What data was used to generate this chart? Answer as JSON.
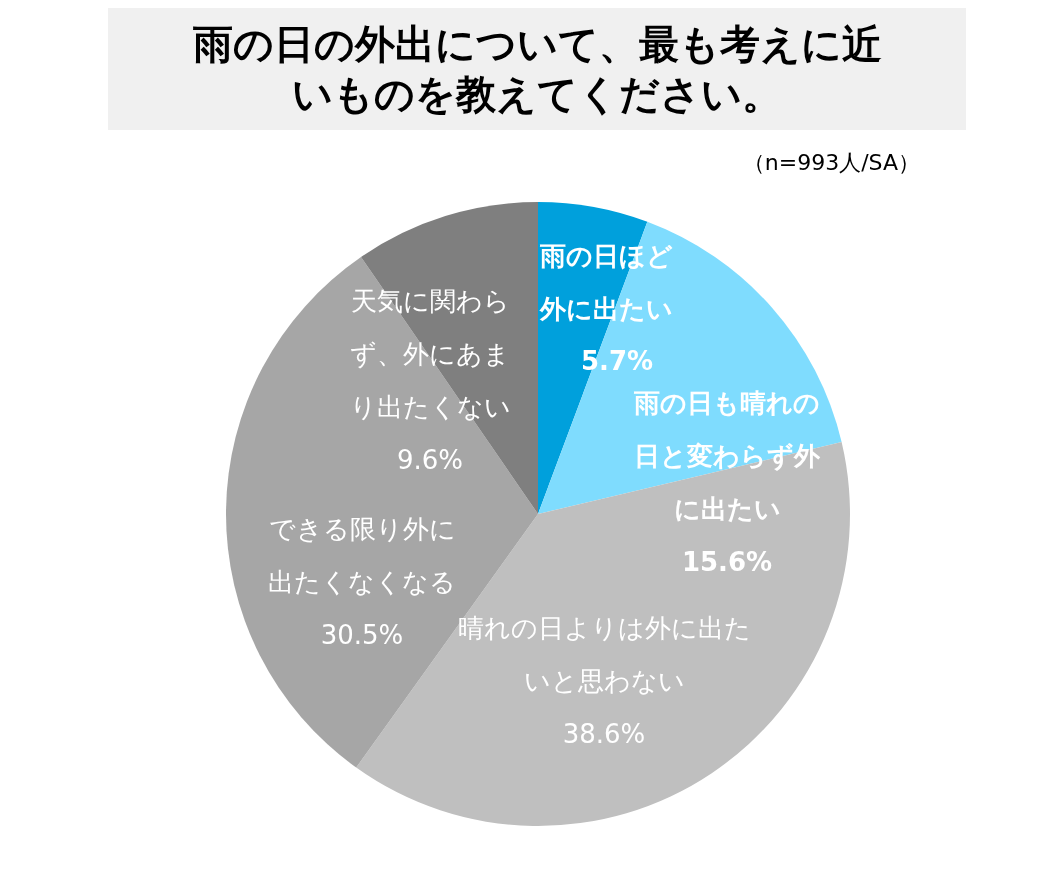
{
  "chart_data": {
    "type": "pie",
    "title": "雨の日の外出について、最も考えに近いものを教えてください。",
    "subtitle": "（n=993人/SA）",
    "categories": [
      "雨の日ほど外に出たい",
      "雨の日も晴れの日と変わらず外に出たい",
      "晴れの日よりは外に出たいと思わない",
      "できる限り外に出たくなくなる",
      "天気に関わらず、外にあまり出たくない"
    ],
    "values": [
      5.7,
      15.6,
      38.6,
      30.5,
      9.6
    ],
    "colors": [
      "#00a0dc",
      "#7fdcfe",
      "#bfbfbf",
      "#a6a6a6",
      "#7f7f7f"
    ],
    "value_labels": [
      "5.7%",
      "15.6%",
      "38.6%",
      "30.5%",
      "9.6%"
    ]
  }
}
